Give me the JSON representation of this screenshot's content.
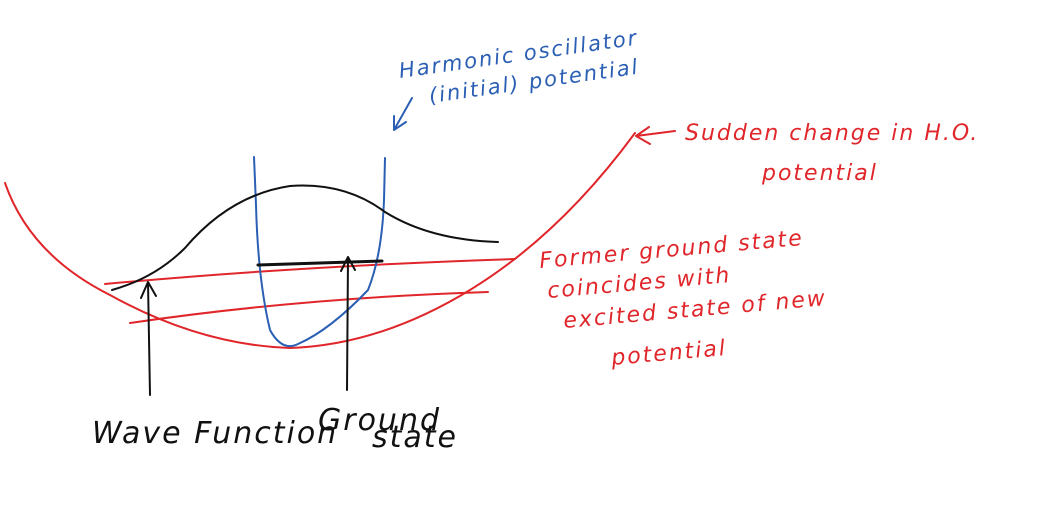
{
  "colors": {
    "ink": "#111111",
    "new_potential": "#e0262a",
    "initial_potential": "#2b5fb3",
    "background": "#ffffff"
  },
  "labels": {
    "initial_potential": [
      "Harmonic oscillator",
      "(initial) potential"
    ],
    "sudden_change": [
      "Sudden change in H.O.",
      "potential"
    ],
    "former_ground_state": [
      "Former ground state",
      "coincides with",
      "excited state of new",
      "potential"
    ],
    "wave_function": "Wave Function",
    "ground_state": [
      "Ground",
      "state"
    ]
  }
}
